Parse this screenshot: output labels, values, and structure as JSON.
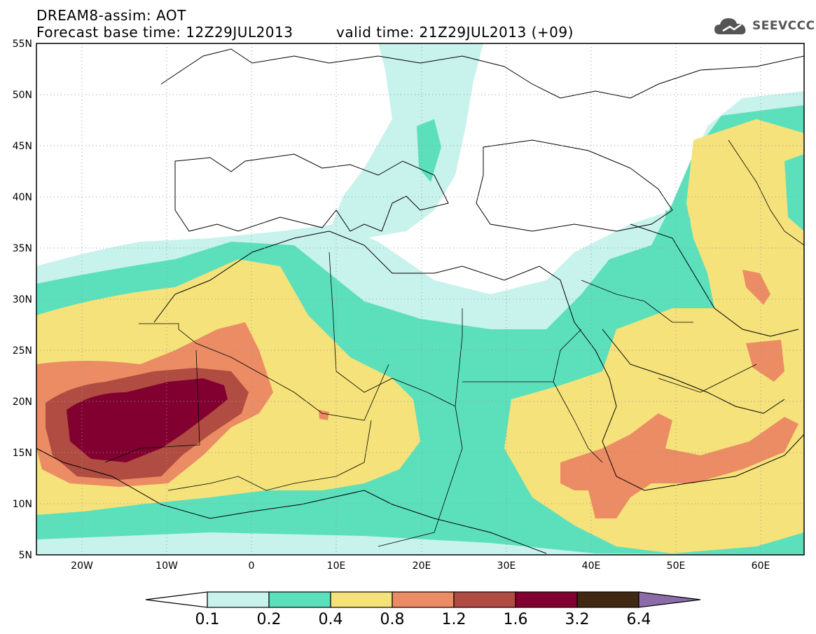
{
  "header": {
    "line1": "DREAM8-assim: AOT",
    "line2": "Forecast base time: 12Z29JUL2013",
    "valid": "valid time: 21Z29JUL2013 (+09)",
    "logo_text": "SEEVCCC",
    "logo_icon": "cloud-icon"
  },
  "map": {
    "lon_labels": [
      "20W",
      "10W",
      "0",
      "10E",
      "20E",
      "30E",
      "40E",
      "50E",
      "60E"
    ],
    "lat_labels": [
      "55N",
      "50N",
      "45N",
      "40N",
      "35N",
      "30N",
      "25N",
      "20N",
      "15N",
      "10N",
      "5N"
    ]
  },
  "colorbar": {
    "labels": [
      "0.1",
      "0.2",
      "0.4",
      "0.8",
      "1.2",
      "1.6",
      "3.2",
      "6.4"
    ],
    "colors": [
      "#c8f2ec",
      "#5ce0bc",
      "#f5e27a",
      "#eb8c64",
      "#b04c41",
      "#820030",
      "#412813",
      "#8b6ba8"
    ]
  }
}
